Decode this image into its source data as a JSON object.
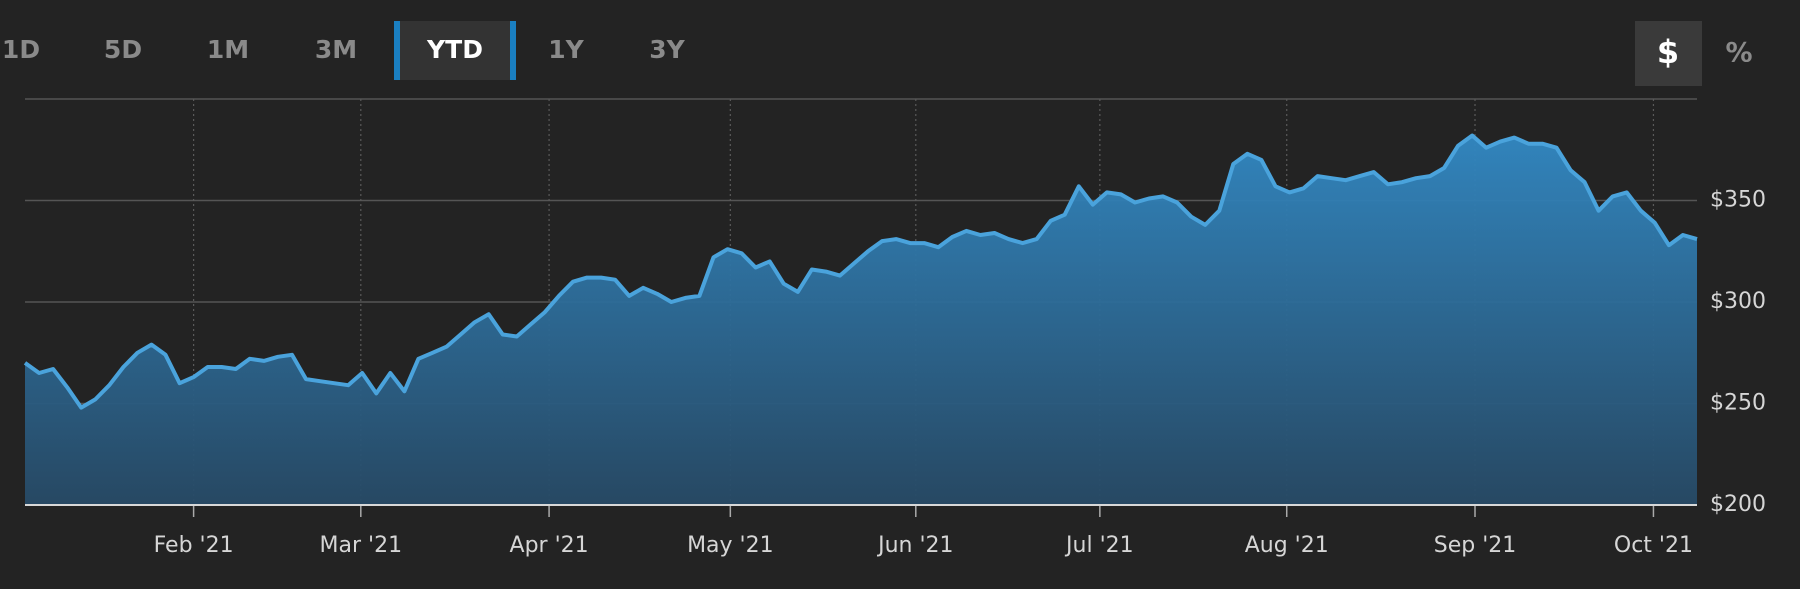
{
  "ui": {
    "ranges": [
      "1D",
      "5D",
      "1M",
      "3M",
      "YTD",
      "1Y",
      "3Y"
    ],
    "selected_range": "YTD",
    "modes": [
      "$",
      "%"
    ],
    "selected_mode": "$"
  },
  "chart_data": {
    "type": "area",
    "color": "#4aa3dc",
    "values": [
      270,
      265,
      267,
      258,
      248,
      252,
      259,
      268,
      275,
      279,
      274,
      260,
      263,
      268,
      268,
      267,
      272,
      271,
      273,
      274,
      262,
      261,
      260,
      259,
      265,
      255,
      265,
      256,
      272,
      275,
      278,
      284,
      290,
      294,
      284,
      283,
      289,
      295,
      303,
      310,
      312,
      312,
      311,
      303,
      307,
      304,
      300,
      302,
      303,
      322,
      326,
      324,
      317,
      320,
      309,
      305,
      316,
      315,
      313,
      319,
      325,
      330,
      331,
      329,
      329,
      327,
      332,
      335,
      333,
      334,
      331,
      329,
      331,
      340,
      343,
      357,
      348,
      354,
      353,
      349,
      351,
      352,
      349,
      342,
      338,
      345,
      368,
      373,
      370,
      357,
      354,
      356,
      362,
      361,
      360,
      362,
      364,
      358,
      359,
      361,
      362,
      366,
      377,
      382,
      376,
      379,
      381,
      378,
      378,
      376,
      365,
      359,
      345,
      352,
      354,
      345,
      339,
      328,
      333,
      331
    ],
    "xlim": [
      0,
      119
    ],
    "xticks": [
      {
        "value": 12.0,
        "label": "Feb '21"
      },
      {
        "value": 23.9,
        "label": "Mar '21"
      },
      {
        "value": 37.3,
        "label": "Apr '21"
      },
      {
        "value": 50.2,
        "label": "May '21"
      },
      {
        "value": 63.4,
        "label": "Jun '21"
      },
      {
        "value": 76.5,
        "label": "Jul '21"
      },
      {
        "value": 89.8,
        "label": "Aug '21"
      },
      {
        "value": 103.2,
        "label": "Sep '21"
      },
      {
        "value": 115.9,
        "label": "Oct '21"
      }
    ],
    "ylim": [
      200,
      400
    ],
    "yticks": [
      {
        "value": 200,
        "label": "$200"
      },
      {
        "value": 250,
        "label": "$250"
      },
      {
        "value": 300,
        "label": "$300"
      },
      {
        "value": 350,
        "label": "$350"
      }
    ],
    "grid": true
  }
}
